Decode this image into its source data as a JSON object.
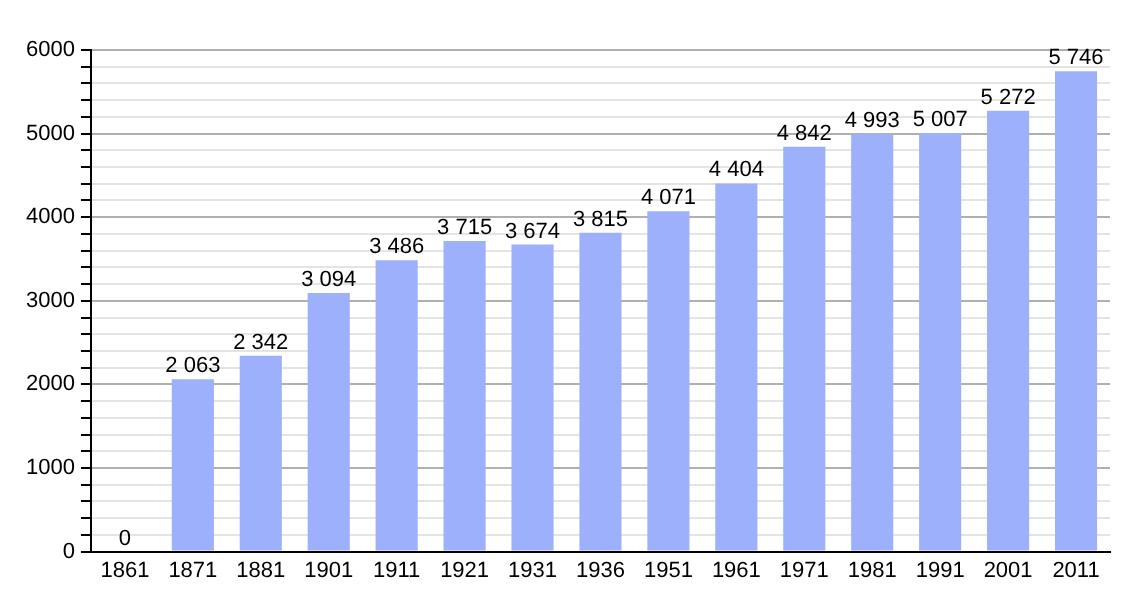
{
  "chart_data": {
    "type": "bar",
    "categories": [
      "1861",
      "1871",
      "1881",
      "1901",
      "1911",
      "1921",
      "1931",
      "1936",
      "1951",
      "1961",
      "1971",
      "1981",
      "1991",
      "2001",
      "2011"
    ],
    "values": [
      0,
      2063,
      2342,
      3094,
      3486,
      3715,
      3674,
      3815,
      4071,
      4404,
      4842,
      4993,
      5007,
      5272,
      5746
    ],
    "value_labels": [
      "0",
      "2 063",
      "2 342",
      "3 094",
      "3 486",
      "3 715",
      "3 674",
      "3 815",
      "4 071",
      "4 404",
      "4 842",
      "4 993",
      "5 007",
      "5 272",
      "5 746"
    ],
    "color": "#9cb0fc",
    "ylim": [
      0,
      6000
    ],
    "yticks": [
      0,
      {
        "value": 200,
        "label": null
      },
      {
        "value": 400,
        "label": null
      },
      {
        "value": 600,
        "label": null
      },
      {
        "value": 800,
        "label": null
      },
      1000,
      {
        "value": 1200,
        "label": null
      },
      {
        "value": 1400,
        "label": null
      },
      {
        "value": 1600,
        "label": null
      },
      {
        "value": 1800,
        "label": null
      },
      2000,
      {
        "value": 2200,
        "label": null
      },
      {
        "value": 2400,
        "label": null
      },
      {
        "value": 2600,
        "label": null
      },
      {
        "value": 2800,
        "label": null
      },
      3000,
      {
        "value": 3200,
        "label": null
      },
      {
        "value": 3400,
        "label": null
      },
      {
        "value": 3600,
        "label": null
      },
      {
        "value": 3800,
        "label": null
      },
      4000,
      {
        "value": 4200,
        "label": null
      },
      {
        "value": 4400,
        "label": null
      },
      {
        "value": 4600,
        "label": null
      },
      {
        "value": 4800,
        "label": null
      },
      5000,
      {
        "value": 5200,
        "label": null
      },
      {
        "value": 5400,
        "label": null
      },
      {
        "value": 5600,
        "label": null
      },
      {
        "value": 5800,
        "label": null
      },
      6000
    ],
    "grid": "y"
  }
}
